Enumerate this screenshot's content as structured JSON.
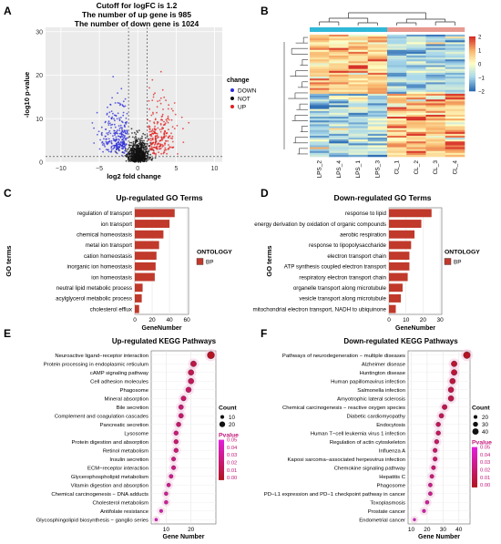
{
  "panels": {
    "A": "A",
    "B": "B",
    "C": "C",
    "D": "D",
    "E": "E",
    "F": "F"
  },
  "chart_data": [
    {
      "panel": "A",
      "type": "scatter",
      "title_lines": [
        "Cutoff for logFC is 1.2",
        "The number of up gene is 985",
        "The number of down gene is 1024"
      ],
      "xlabel": "log2 fold change",
      "ylabel": "-log10 p-value",
      "xlim": [
        -12,
        11
      ],
      "ylim": [
        0,
        31
      ],
      "xticks": [
        -10,
        -5,
        0,
        5,
        10
      ],
      "yticks": [
        0,
        10,
        20,
        30
      ],
      "logfc_cutoff": 1.2,
      "legend_title": "change",
      "legend": [
        {
          "name": "DOWN",
          "color": "#2b2bd9"
        },
        {
          "name": "NOT",
          "color": "#111111"
        },
        {
          "name": "UP",
          "color": "#e02020"
        }
      ],
      "counts": {
        "UP": 985,
        "DOWN": 1024
      }
    },
    {
      "panel": "B",
      "type": "heatmap",
      "columns": [
        "LPS_2",
        "LPS_4",
        "LPS_1",
        "LPS_3",
        "CL_1",
        "CL_2",
        "CL_3",
        "CL_4"
      ],
      "group_colors": [
        "#2fb8d8",
        "#2fb8d8",
        "#2fb8d8",
        "#2fb8d8",
        "#e89a90",
        "#e89a90",
        "#e89a90",
        "#e89a90"
      ],
      "color_scale": {
        "min": -2,
        "max": 2,
        "ticks": [
          2,
          1,
          0,
          -1,
          -2
        ],
        "colors": [
          "#2f6fb5",
          "#a9d8ea",
          "#ffffc4",
          "#f8b46a",
          "#d73027"
        ]
      }
    },
    {
      "panel": "C",
      "type": "bar",
      "orientation": "horizontal",
      "title": "Up-regulated GO Terms",
      "xlabel": "GeneNumber",
      "ylabel": "GO terms",
      "xticks": [
        0,
        20,
        40,
        60
      ],
      "xlim": [
        0,
        62
      ],
      "legend_title": "ONTOLOGY",
      "legend": [
        {
          "name": "BP",
          "color": "#c0392b"
        }
      ],
      "categories": [
        "regulation of transport",
        "ion transport",
        "chemical homeostasis",
        "metal ion transport",
        "cation homeostasis",
        "inorganic ion homeostasis",
        "ion homeostasis",
        "neutral lipid metabolic process",
        "acylglycerol metabolic process",
        "cholesterol efflux"
      ],
      "values": [
        46,
        40,
        33,
        28,
        25,
        24,
        23,
        9,
        8,
        5
      ]
    },
    {
      "panel": "D",
      "type": "bar",
      "orientation": "horizontal",
      "title": "Down-regulated GO Terms",
      "xlabel": "GeneNumber",
      "ylabel": "GO terms",
      "xticks": [
        0,
        10,
        20,
        30
      ],
      "xlim": [
        0,
        31
      ],
      "legend_title": "ONTOLOGY",
      "legend": [
        {
          "name": "BP",
          "color": "#c0392b"
        }
      ],
      "categories": [
        "response to lipid",
        "energy derivation by oxidation of organic compounds",
        "aerobic respiration",
        "response to lipopolysaccharide",
        "electron transport chain",
        "ATP synthesis coupled electron transport",
        "respiratory electron transport chain",
        "organelle transport along microtubule",
        "vesicle transport along microtubule",
        "mitochondrial electron transport, NADH to ubiquinone"
      ],
      "values": [
        25,
        19,
        15,
        13,
        12,
        12,
        11,
        8,
        7,
        4
      ]
    },
    {
      "panel": "E",
      "type": "scatter",
      "title": "Up-regulated KEGG Pathways",
      "xlabel": "Gene Number",
      "xticks": [
        10,
        20
      ],
      "xlim": [
        4,
        30
      ],
      "size_legend_title": "Count",
      "size_legend": [
        10,
        20
      ],
      "color_legend_title": "Pvalue",
      "color_legend_ticks": [
        0.05,
        0.04,
        0.03,
        0.02,
        0.01,
        0.0
      ],
      "categories": [
        "Neuroactive ligand−receptor interaction",
        "Protein processing in endoplasmic reticulum",
        "cAMP signaling pathway",
        "Cell adhesion molecules",
        "Phagosome",
        "Mineral absorption",
        "Bile secretion",
        "Complement and coagulation cascades",
        "Pancreatic secretion",
        "Lysosome",
        "Protein digestion and absorption",
        "Retinol metabolism",
        "Insulin secretion",
        "ECM−receptor interaction",
        "Glycerophospholipid metabolism",
        "Vitamin digestion and absorption",
        "Chemical carcinogenesis − DNA adducts",
        "Cholesterol metabolism",
        "Antifolate resistance",
        "Glycosphingolipid biosynthesis − ganglio series"
      ],
      "values": [
        28,
        21,
        20,
        20,
        19,
        17,
        16,
        16,
        15,
        14,
        14,
        14,
        13,
        13,
        12,
        11,
        10,
        10,
        8,
        6
      ],
      "pvalues": [
        0.0,
        0.01,
        0.012,
        0.015,
        0.018,
        0.02,
        0.022,
        0.02,
        0.02,
        0.025,
        0.022,
        0.024,
        0.026,
        0.028,
        0.03,
        0.03,
        0.032,
        0.035,
        0.04,
        0.048
      ]
    },
    {
      "panel": "F",
      "type": "scatter",
      "title": "Down-regulated  KEGG Pathways",
      "xlabel": "Gene Number",
      "xticks": [
        10,
        20,
        30,
        40
      ],
      "xlim": [
        8,
        47
      ],
      "size_legend_title": "Count",
      "size_legend": [
        20,
        30,
        40
      ],
      "color_legend_title": "Pvalue",
      "color_legend_ticks": [
        0.05,
        0.04,
        0.03,
        0.02,
        0.01,
        0.0
      ],
      "categories": [
        "Pathways of neurodegeneration − multiple diseases",
        "Alzheimer disease",
        "Huntington disease",
        "Human papillomavirus infection",
        "Salmonella infection",
        "Amyotrophic lateral sclerosis",
        "Chemical carcinogenesis − reactive oxygen species",
        "Diabetic cardiomyopathy",
        "Endocytosis",
        "Human T−cell leukemia virus 1 infection",
        "Regulation of actin cytoskeleton",
        "Influenza A",
        "Kaposi sarcoma−associated herpesvirus infection",
        "Chemokine signaling pathway",
        "Hepatitis C",
        "Phagosome",
        "PD−L1 expression and PD−1 checkpoint pathway in cancer",
        "Toxoplasmosis",
        "Prostate cancer",
        "Endometrial cancer"
      ],
      "values": [
        45,
        37,
        37,
        36,
        35,
        35,
        31,
        29,
        27,
        27,
        26,
        25,
        25,
        24,
        23,
        22,
        22,
        20,
        18,
        12
      ],
      "pvalues": [
        0.0,
        0.005,
        0.006,
        0.008,
        0.01,
        0.01,
        0.012,
        0.014,
        0.015,
        0.016,
        0.018,
        0.02,
        0.02,
        0.022,
        0.024,
        0.028,
        0.03,
        0.034,
        0.04,
        0.048
      ]
    }
  ]
}
